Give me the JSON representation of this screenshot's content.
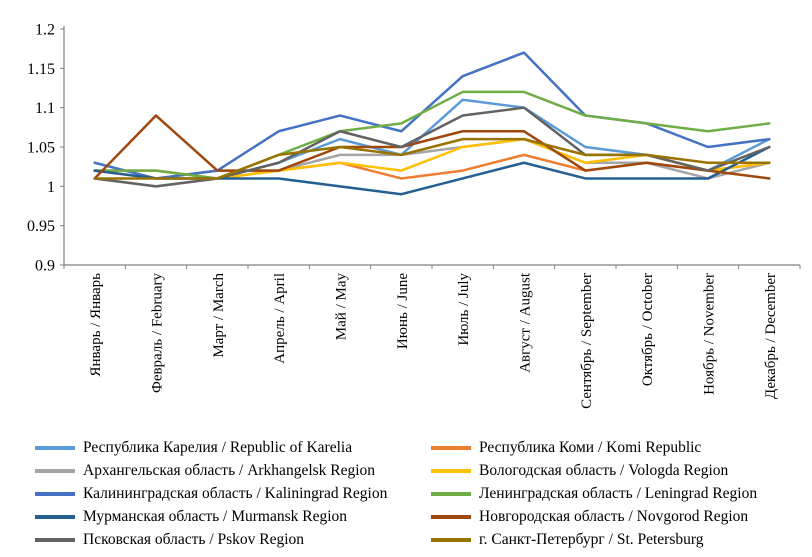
{
  "chart_data": {
    "type": "line",
    "title": "",
    "xlabel": "",
    "ylabel": "",
    "ylim": [
      0.9,
      1.2
    ],
    "y_ticks": [
      1.2,
      1.15,
      1.1,
      1.05,
      1,
      0.95,
      0.9
    ],
    "grid": false,
    "legend_position": "bottom",
    "axis_color": "#808080",
    "text_color": "#000000",
    "categories": [
      "Январь / Январь",
      "Февраль / February",
      "Март / March",
      "Апрель / April",
      "Май / May",
      "Июнь / June",
      "Июль / July",
      "Август / August",
      "Сентябрь / September",
      "Октябрь / October",
      "Ноябрь / November",
      "Декабрь / December"
    ],
    "series": [
      {
        "name": "Республика Карелия / Republic of Karelia",
        "color": "#5B9BD5",
        "values": [
          1.02,
          1.02,
          1.01,
          1.03,
          1.06,
          1.04,
          1.11,
          1.1,
          1.05,
          1.04,
          1.02,
          1.06
        ]
      },
      {
        "name": "Республика Коми / Komi Republic",
        "color": "#ED7D31",
        "values": [
          1.02,
          1.01,
          1.02,
          1.02,
          1.03,
          1.01,
          1.02,
          1.04,
          1.02,
          1.03,
          1.02,
          1.03
        ]
      },
      {
        "name": "Архангельская область  / Arkhangelsk Region",
        "color": "#A5A5A5",
        "values": [
          1.01,
          1.0,
          1.01,
          1.02,
          1.04,
          1.04,
          1.05,
          1.06,
          1.03,
          1.03,
          1.01,
          1.03
        ]
      },
      {
        "name": "Вологодская область / Vologda Region",
        "color": "#FFC000",
        "values": [
          1.02,
          1.02,
          1.01,
          1.02,
          1.03,
          1.02,
          1.05,
          1.06,
          1.03,
          1.04,
          1.02,
          1.03
        ]
      },
      {
        "name": "Калининградская область / Kaliningrad Region",
        "color": "#4472C4",
        "values": [
          1.03,
          1.01,
          1.02,
          1.07,
          1.09,
          1.07,
          1.14,
          1.17,
          1.09,
          1.08,
          1.05,
          1.06
        ]
      },
      {
        "name": "Ленинградская область / Leningrad Region",
        "color": "#70AD47",
        "values": [
          1.02,
          1.02,
          1.01,
          1.04,
          1.07,
          1.08,
          1.12,
          1.12,
          1.09,
          1.08,
          1.07,
          1.08
        ]
      },
      {
        "name": "Мурманская область / Murmansk Region",
        "color": "#255E91",
        "values": [
          1.02,
          1.01,
          1.01,
          1.01,
          1.0,
          0.99,
          1.01,
          1.03,
          1.01,
          1.01,
          1.01,
          1.05
        ]
      },
      {
        "name": "Новгородская область / Novgorod Region",
        "color": "#9E480E",
        "values": [
          1.01,
          1.09,
          1.02,
          1.02,
          1.05,
          1.05,
          1.07,
          1.07,
          1.02,
          1.03,
          1.02,
          1.01
        ]
      },
      {
        "name": "Псковская область / Pskov Region",
        "color": "#636363",
        "values": [
          1.01,
          1.0,
          1.01,
          1.03,
          1.07,
          1.05,
          1.09,
          1.1,
          1.04,
          1.04,
          1.02,
          1.05
        ]
      },
      {
        "name": "г. Санкт-Петербург / St. Petersburg",
        "color": "#997300",
        "values": [
          1.01,
          1.01,
          1.01,
          1.04,
          1.05,
          1.04,
          1.06,
          1.06,
          1.04,
          1.04,
          1.03,
          1.03
        ]
      }
    ]
  }
}
